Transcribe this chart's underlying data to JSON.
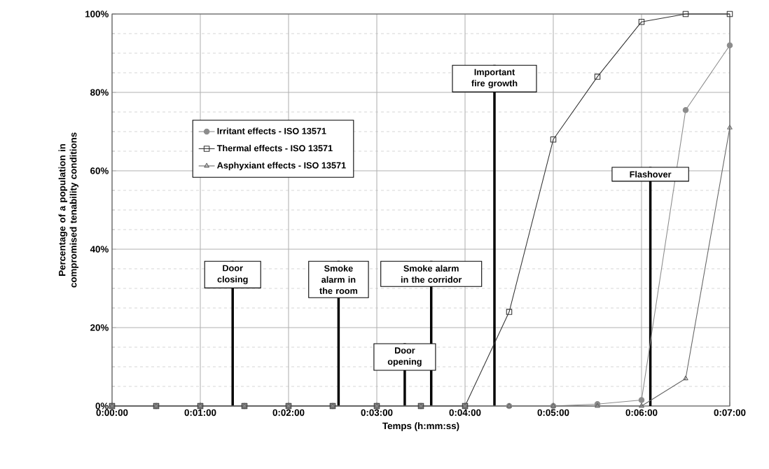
{
  "chart_data": {
    "type": "line",
    "xlabel": "Temps (h:mm:ss)",
    "ylabel": "Percentage of a population in compromised tenability conditions",
    "x": [
      0,
      0.008333,
      0.016667,
      0.025,
      0.033333,
      0.041667,
      0.05,
      0.058333,
      0.066667,
      0.075,
      0.083333,
      0.091667,
      0.1,
      0.108333,
      0.116667
    ],
    "series": [
      {
        "name": "Irritant effects - ISO 13571",
        "color": "#8c8c8c",
        "marker": "circle",
        "values": [
          0,
          0,
          0,
          0,
          0,
          0,
          0,
          0,
          0,
          0,
          0,
          0.5,
          1.5,
          75.5,
          92
        ]
      },
      {
        "name": "Thermal effects - ISO 13571",
        "color": "#333333",
        "marker": "square",
        "values": [
          0,
          0,
          0,
          0,
          0,
          0,
          0,
          0,
          0,
          24,
          68,
          84,
          98,
          100,
          100
        ]
      },
      {
        "name": "Asphyxiant effects - ISO 13571",
        "color": "#666666",
        "marker": "triangle",
        "values": [
          0,
          0,
          0,
          0,
          0,
          0,
          0,
          0,
          0,
          0,
          0,
          0,
          0,
          7,
          71
        ]
      }
    ],
    "xlim": [
      0,
      0.116667
    ],
    "xticks": [
      {
        "value": 0,
        "label": "0:00:00"
      },
      {
        "value": 0.016667,
        "label": "0:01:00"
      },
      {
        "value": 0.033333,
        "label": "0:02:00"
      },
      {
        "value": 0.05,
        "label": "0:03:00"
      },
      {
        "value": 0.066667,
        "label": "0:04:00"
      },
      {
        "value": 0.083333,
        "label": "0:05:00"
      },
      {
        "value": 0.1,
        "label": "0:06:00"
      },
      {
        "value": 0.116667,
        "label": "0:07:00"
      }
    ],
    "ylim": [
      0,
      100
    ],
    "yticks": [
      {
        "value": 0,
        "label": "0%"
      },
      {
        "value": 20,
        "label": "20%"
      },
      {
        "value": 40,
        "label": "40%"
      },
      {
        "value": 60,
        "label": "60%"
      },
      {
        "value": 80,
        "label": "80%"
      },
      {
        "value": 100,
        "label": "100%"
      }
    ],
    "ref_lines": [
      {
        "axis": "x",
        "value": 0.022778,
        "label": "Door closing",
        "color": "#000000"
      },
      {
        "axis": "x",
        "value": 0.042778,
        "label": "Smoke alarm in the room",
        "color": "#000000"
      },
      {
        "axis": "x",
        "value": 0.055278,
        "label": "Door opening",
        "color": "#000000"
      },
      {
        "axis": "x",
        "value": 0.060278,
        "label": "Smoke alarm in the corridor",
        "color": "#000000"
      },
      {
        "axis": "x",
        "value": 0.072222,
        "label": "Important fire growth",
        "color": "#000000"
      },
      {
        "axis": "x",
        "value": 0.101667,
        "label": "Flashover",
        "color": "#000000"
      }
    ],
    "grid": true,
    "legend": "left",
    "line_style": "solid"
  }
}
